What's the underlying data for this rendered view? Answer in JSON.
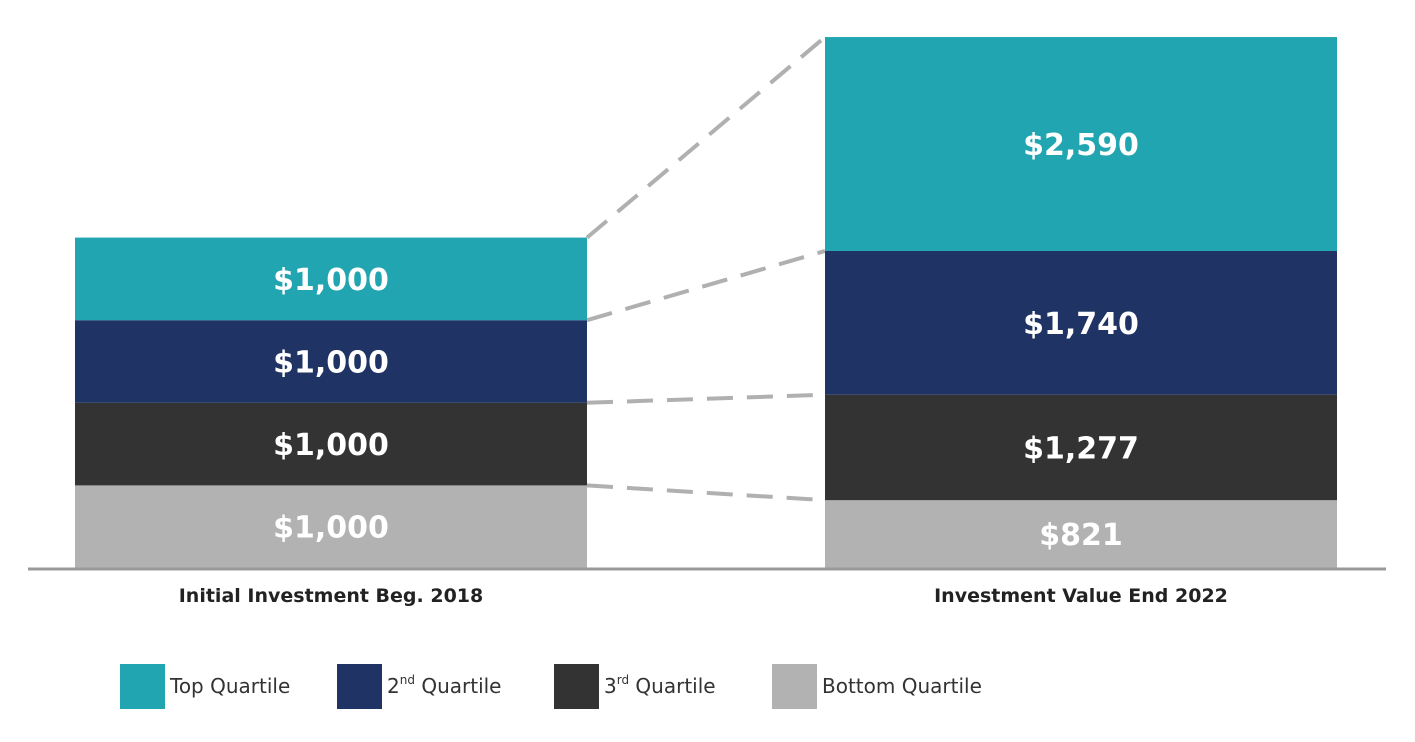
{
  "chart_data": {
    "type": "bar",
    "stacked": true,
    "categories": [
      "Initial Investment Beg. 2018",
      "Investment Value End 2022"
    ],
    "series": [
      {
        "name": "Bottom Quartile",
        "legend_parts": [
          "Bottom Quartile"
        ],
        "color": "#b2b2b2",
        "values": [
          1000,
          821
        ],
        "labels": [
          "$1,000",
          "$821"
        ]
      },
      {
        "name": "3rd Quartile",
        "legend_parts": [
          "3",
          "rd",
          " Quartile"
        ],
        "color": "#333333",
        "values": [
          1000,
          1277
        ],
        "labels": [
          "$1,000",
          "$1,277"
        ]
      },
      {
        "name": "2nd Quartile",
        "legend_parts": [
          "2",
          "nd",
          " Quartile"
        ],
        "color": "#1f3364",
        "values": [
          1000,
          1740
        ],
        "labels": [
          "$1,000",
          "$1,740"
        ]
      },
      {
        "name": "Top Quartile",
        "legend_parts": [
          "Top Quartile"
        ],
        "color": "#21a5b1",
        "values": [
          1000,
          2590
        ],
        "labels": [
          "$1,000",
          "$2,590"
        ]
      }
    ],
    "connectors": {
      "style": "dashed",
      "color": "#b0b0b0"
    },
    "legend_position": "bottom",
    "grid": false,
    "baseline_color": "#999999"
  }
}
